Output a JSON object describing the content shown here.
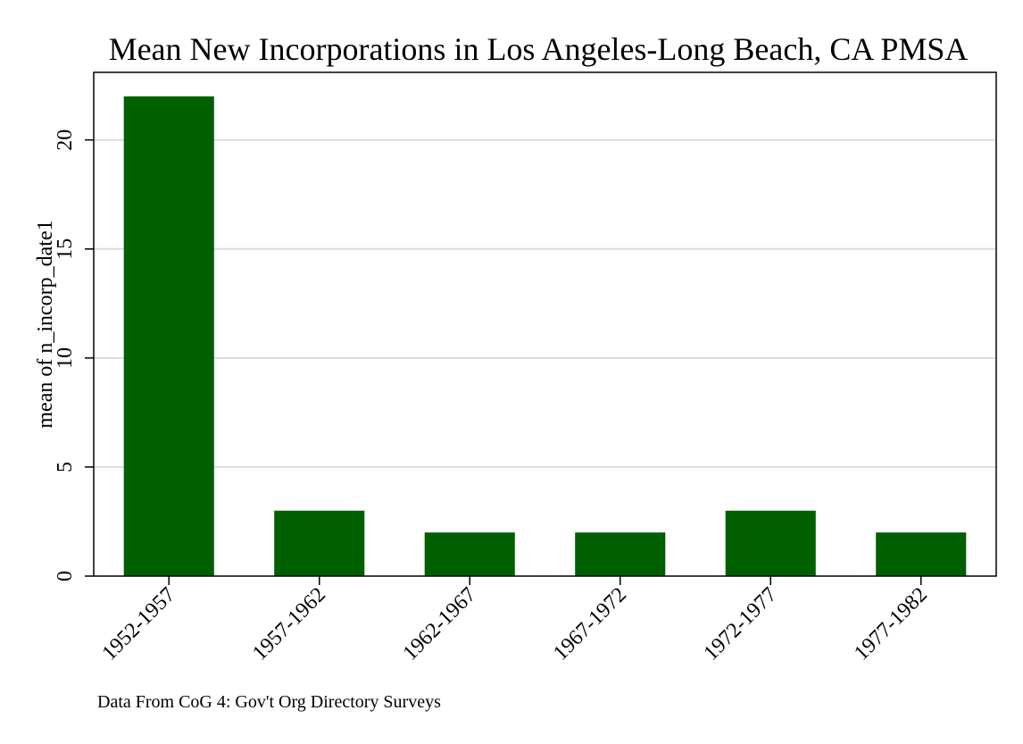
{
  "chart_data": {
    "type": "bar",
    "title": "Mean New Incorporations in Los Angeles-Long Beach, CA PMSA",
    "xlabel": "",
    "ylabel": "mean of n_incorp_date1",
    "categories": [
      "1952-1957",
      "1957-1962",
      "1962-1967",
      "1967-1972",
      "1972-1977",
      "1977-1982"
    ],
    "values": [
      22,
      3,
      2,
      2,
      3,
      2
    ],
    "ylim": [
      0,
      23.1
    ],
    "yticks": [
      0,
      5,
      10,
      15,
      20
    ],
    "grid": true,
    "bar_color": "#006000",
    "gridline_color": "#dcdcdc",
    "note": "Data From CoG 4: Gov't Org Directory Surveys"
  }
}
